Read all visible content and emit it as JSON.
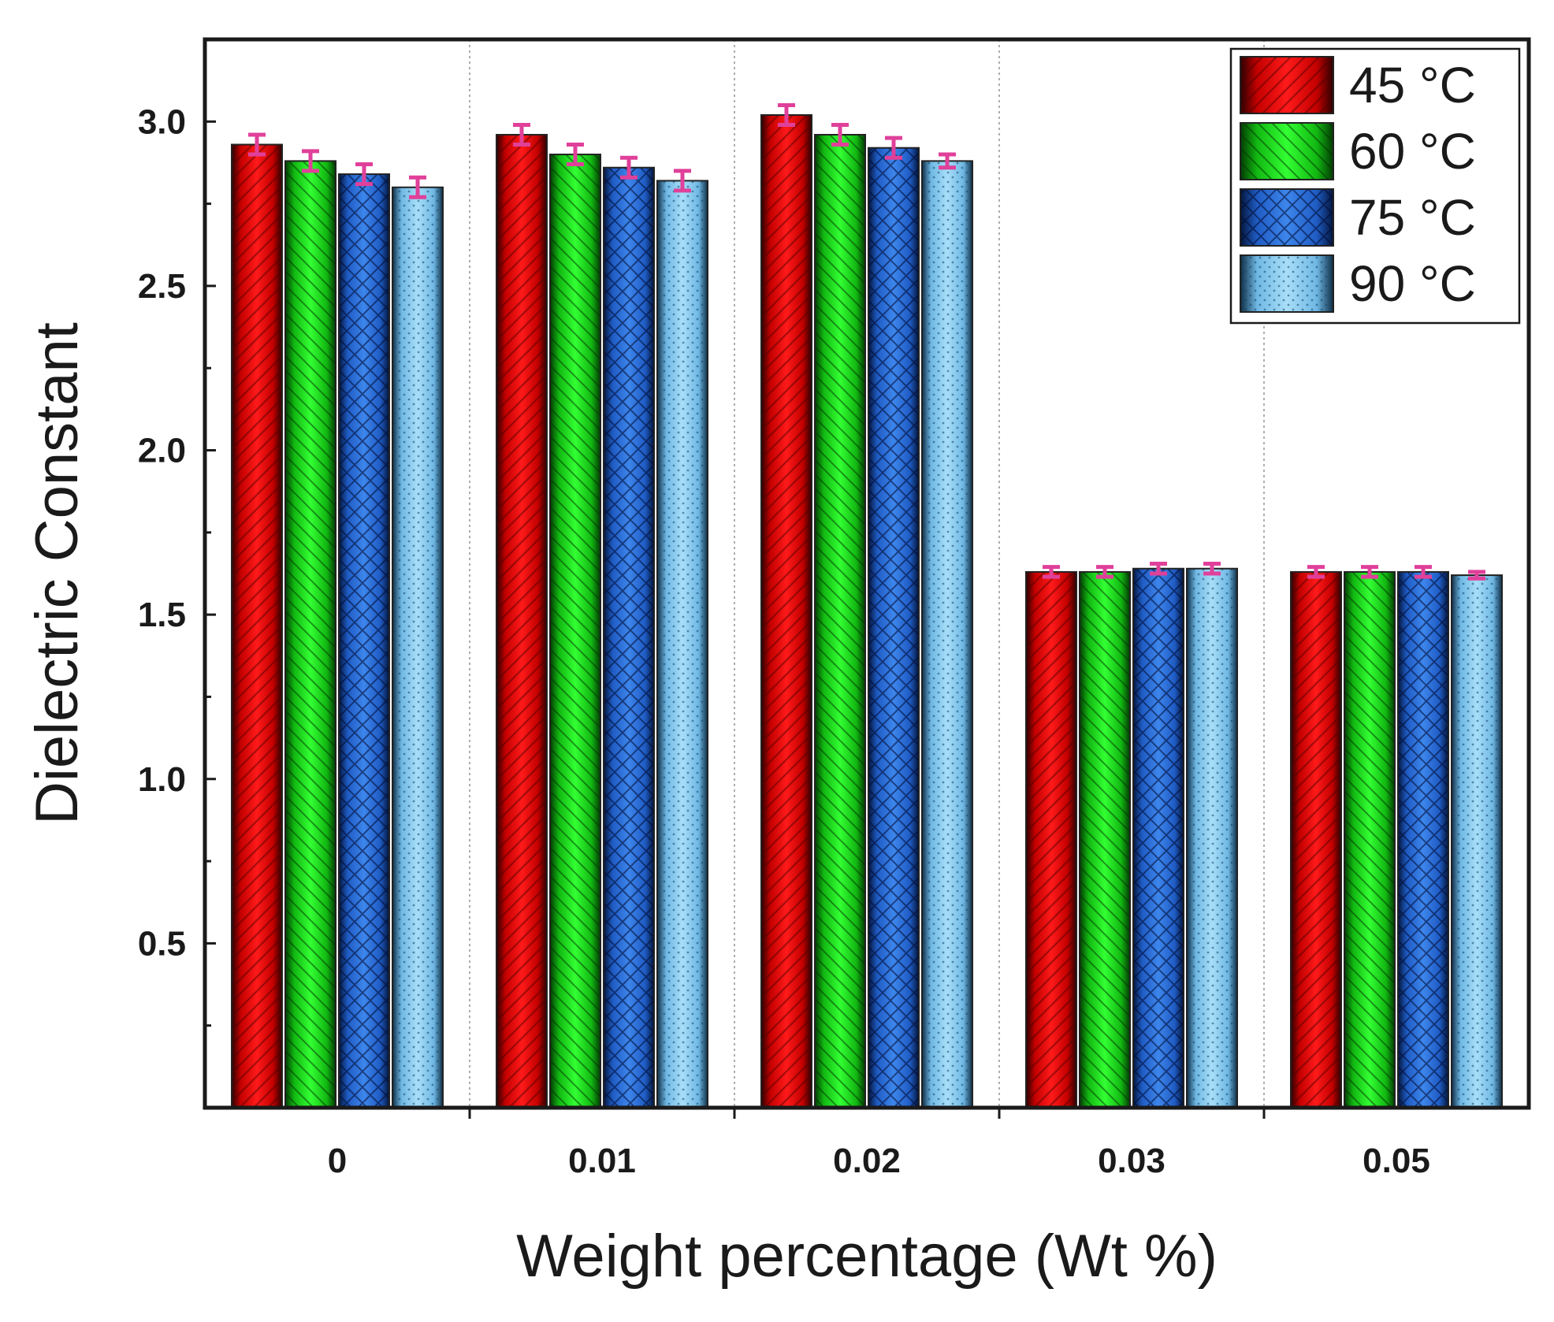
{
  "chart_data": {
    "type": "bar",
    "title": "",
    "xlabel": "Weight percentage (Wt %)",
    "ylabel": "Dielectric Constant",
    "categories": [
      "0",
      "0.01",
      "0.02",
      "0.03",
      "0.05"
    ],
    "ylim": [
      0,
      3.25
    ],
    "yticks": [
      0.5,
      1.0,
      1.5,
      2.0,
      2.5,
      3.0
    ],
    "ytick_labels": [
      "0.5",
      "1.0",
      "1.5",
      "2.0",
      "2.5",
      "3.0"
    ],
    "grid": "vertical dotted separators between categories",
    "legend_position": "top-right",
    "error_bar_color": "#e0409a",
    "series": [
      {
        "name": "45 °C",
        "color": "#e60000",
        "pattern": "diagonal-right",
        "values": [
          2.93,
          2.96,
          3.02,
          1.63,
          1.63
        ],
        "errors": [
          0.03,
          0.03,
          0.03,
          0.015,
          0.015
        ]
      },
      {
        "name": "60 °C",
        "color": "#19d619",
        "pattern": "diagonal-left",
        "values": [
          2.88,
          2.9,
          2.96,
          1.63,
          1.63
        ],
        "errors": [
          0.03,
          0.03,
          0.03,
          0.015,
          0.015
        ]
      },
      {
        "name": "75 °C",
        "color": "#2b6fd6",
        "pattern": "crosshatch",
        "values": [
          2.84,
          2.86,
          2.92,
          1.64,
          1.63
        ],
        "errors": [
          0.03,
          0.03,
          0.03,
          0.015,
          0.015
        ]
      },
      {
        "name": "90 °C",
        "color": "#8fd0f0",
        "pattern": "dots",
        "values": [
          2.8,
          2.82,
          2.88,
          1.64,
          1.62
        ],
        "errors": [
          0.03,
          0.03,
          0.02,
          0.015,
          0.01
        ]
      }
    ]
  }
}
